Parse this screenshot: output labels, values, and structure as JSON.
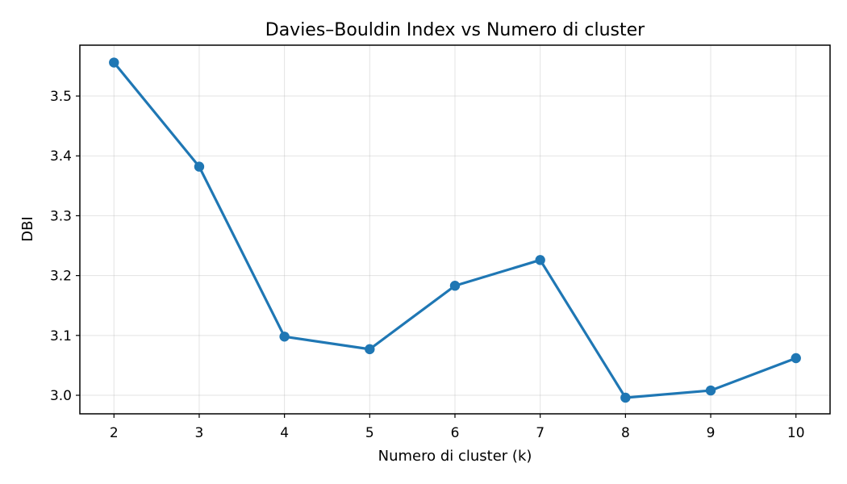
{
  "chart_data": {
    "type": "line",
    "title": "Davies–Bouldin Index vs Numero di cluster",
    "xlabel": "Numero di cluster (k)",
    "ylabel": "DBI",
    "x": [
      2,
      3,
      4,
      5,
      6,
      7,
      8,
      9,
      10
    ],
    "series": [
      {
        "values": [
          3.556,
          3.382,
          3.098,
          3.077,
          3.183,
          3.226,
          2.996,
          3.008,
          3.062
        ],
        "color": "#1f77b4",
        "marker": "circle"
      }
    ],
    "xlim": [
      1.6,
      10.4
    ],
    "ylim": [
      2.969,
      3.585
    ],
    "xticks": [
      2,
      3,
      4,
      5,
      6,
      7,
      8,
      9,
      10
    ],
    "xtick_labels": [
      "2",
      "3",
      "4",
      "5",
      "6",
      "7",
      "8",
      "9",
      "10"
    ],
    "yticks": [
      3.0,
      3.1,
      3.2,
      3.3,
      3.4,
      3.5
    ],
    "ytick_labels": [
      "3.0",
      "3.1",
      "3.2",
      "3.3",
      "3.4",
      "3.5"
    ],
    "grid": true,
    "legend": false
  }
}
